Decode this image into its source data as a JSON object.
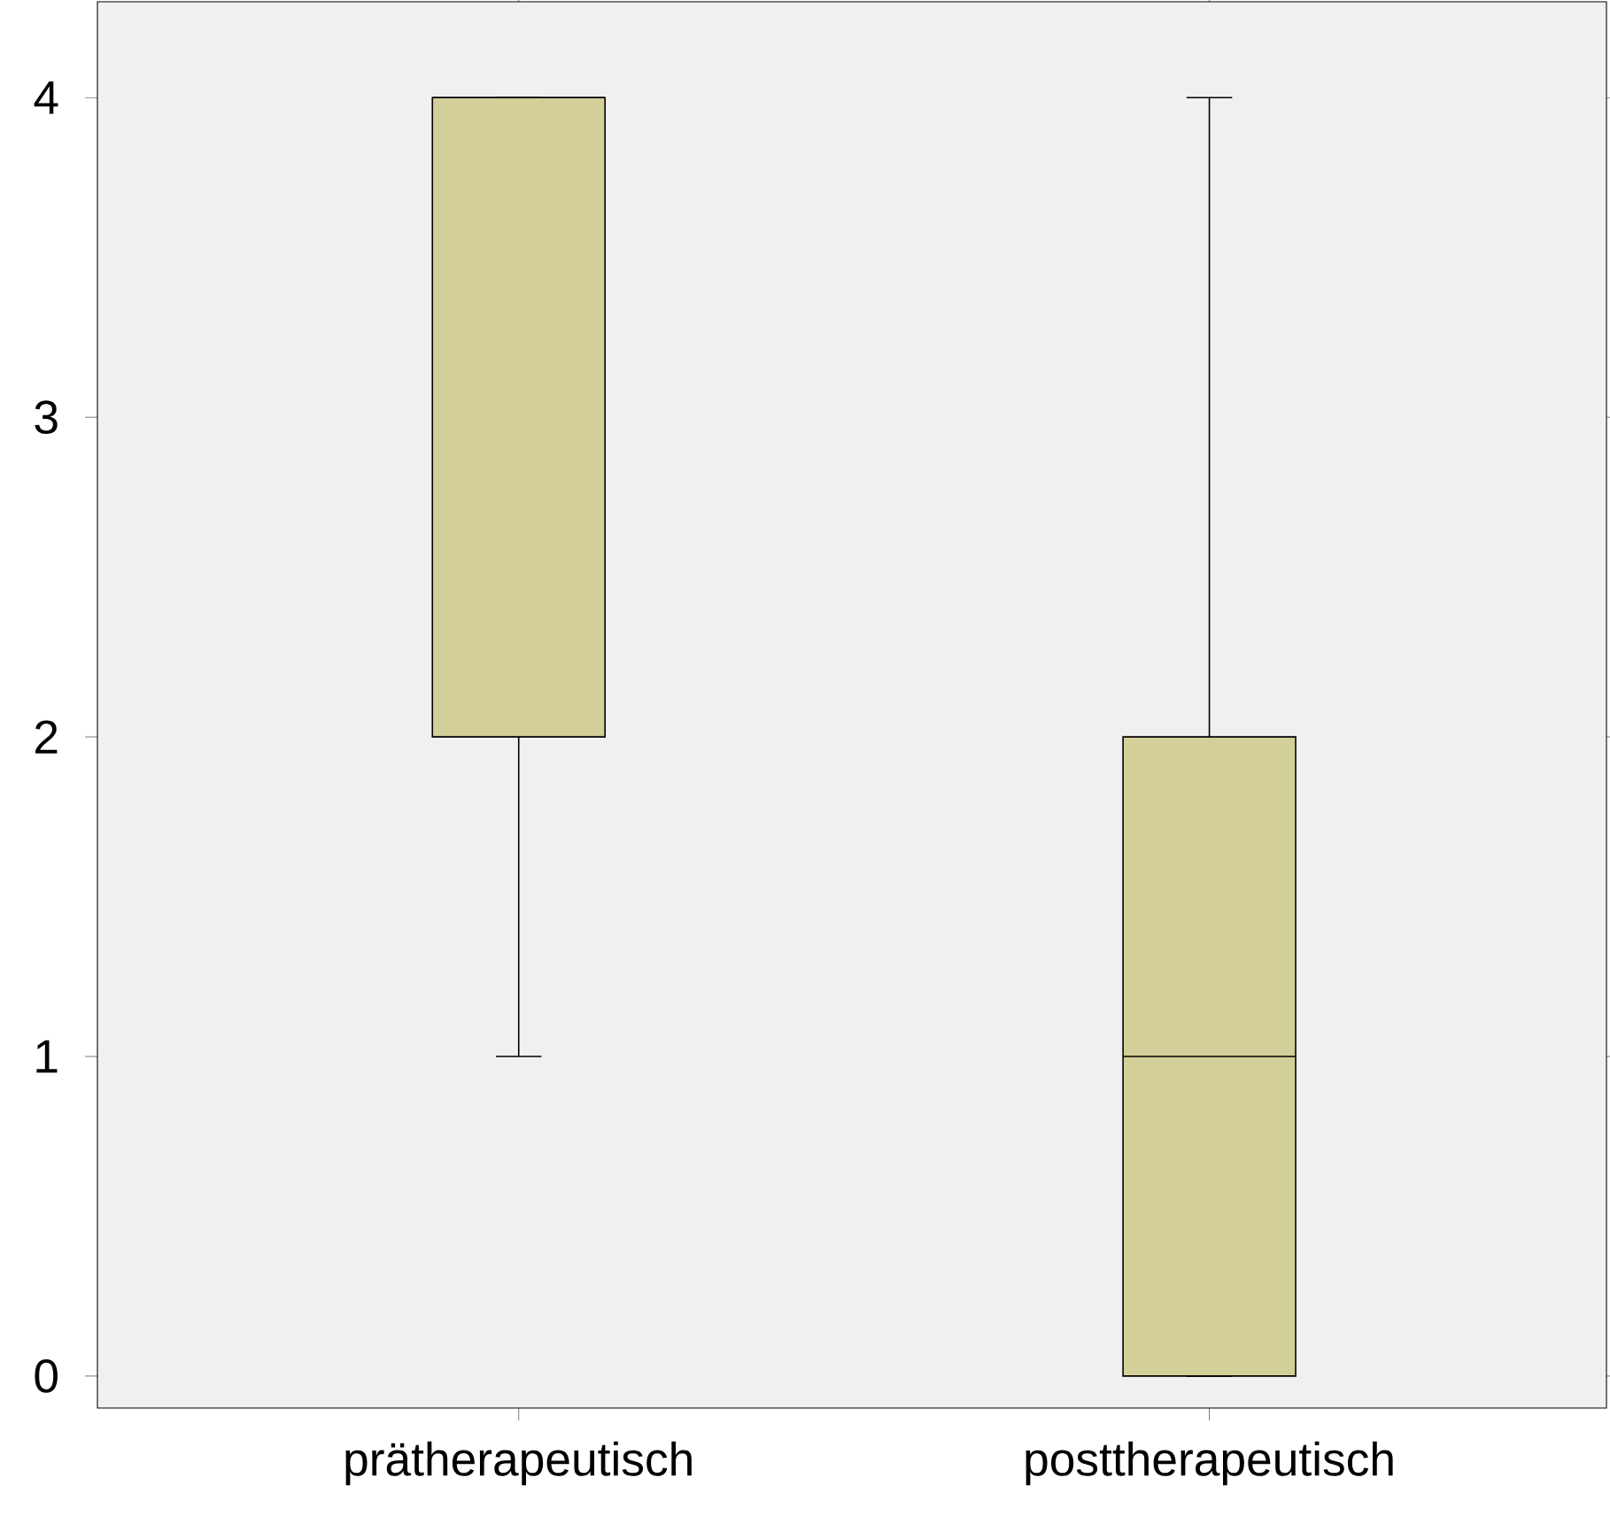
{
  "chart_data": {
    "type": "box",
    "categories": [
      "prätherapeutisch",
      "posttherapeutisch"
    ],
    "series": [
      {
        "color": "#d3cf98",
        "boxes": [
          {
            "low": 1,
            "q1": 2,
            "median": 4,
            "q3": 4,
            "high": 4
          },
          {
            "low": 0,
            "q1": 0,
            "median": 1,
            "q3": 2,
            "high": 4
          }
        ]
      }
    ],
    "ylim": [
      -0.1,
      4.3
    ],
    "yticks": [
      0,
      1,
      2,
      3,
      4
    ]
  }
}
